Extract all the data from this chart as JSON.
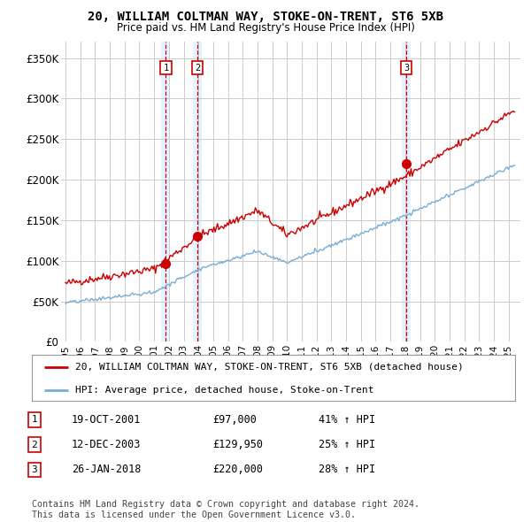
{
  "title": "20, WILLIAM COLTMAN WAY, STOKE-ON-TRENT, ST6 5XB",
  "subtitle": "Price paid vs. HM Land Registry's House Price Index (HPI)",
  "ylim": [
    0,
    370000
  ],
  "yticks": [
    0,
    50000,
    100000,
    150000,
    200000,
    250000,
    300000,
    350000
  ],
  "ytick_labels": [
    "£0",
    "£50K",
    "£100K",
    "£150K",
    "£200K",
    "£250K",
    "£300K",
    "£350K"
  ],
  "xlim_start": 1994.7,
  "xlim_end": 2025.8,
  "sale_dates": [
    2001.8,
    2003.95,
    2018.07
  ],
  "sale_prices": [
    97000,
    129950,
    220000
  ],
  "sale_labels": [
    "1",
    "2",
    "3"
  ],
  "red_line_color": "#cc0000",
  "blue_line_color": "#7aadd4",
  "sale_marker_color": "#cc0000",
  "vline_color": "#cc0000",
  "highlight_fill_color": "#ddeeff",
  "legend_entries": [
    "20, WILLIAM COLTMAN WAY, STOKE-ON-TRENT, ST6 5XB (detached house)",
    "HPI: Average price, detached house, Stoke-on-Trent"
  ],
  "table_data": [
    [
      "1",
      "19-OCT-2001",
      "£97,000",
      "41% ↑ HPI"
    ],
    [
      "2",
      "12-DEC-2003",
      "£129,950",
      "25% ↑ HPI"
    ],
    [
      "3",
      "26-JAN-2018",
      "£220,000",
      "28% ↑ HPI"
    ]
  ],
  "footer": "Contains HM Land Registry data © Crown copyright and database right 2024.\nThis data is licensed under the Open Government Licence v3.0.",
  "background_color": "#ffffff",
  "grid_color": "#cccccc"
}
